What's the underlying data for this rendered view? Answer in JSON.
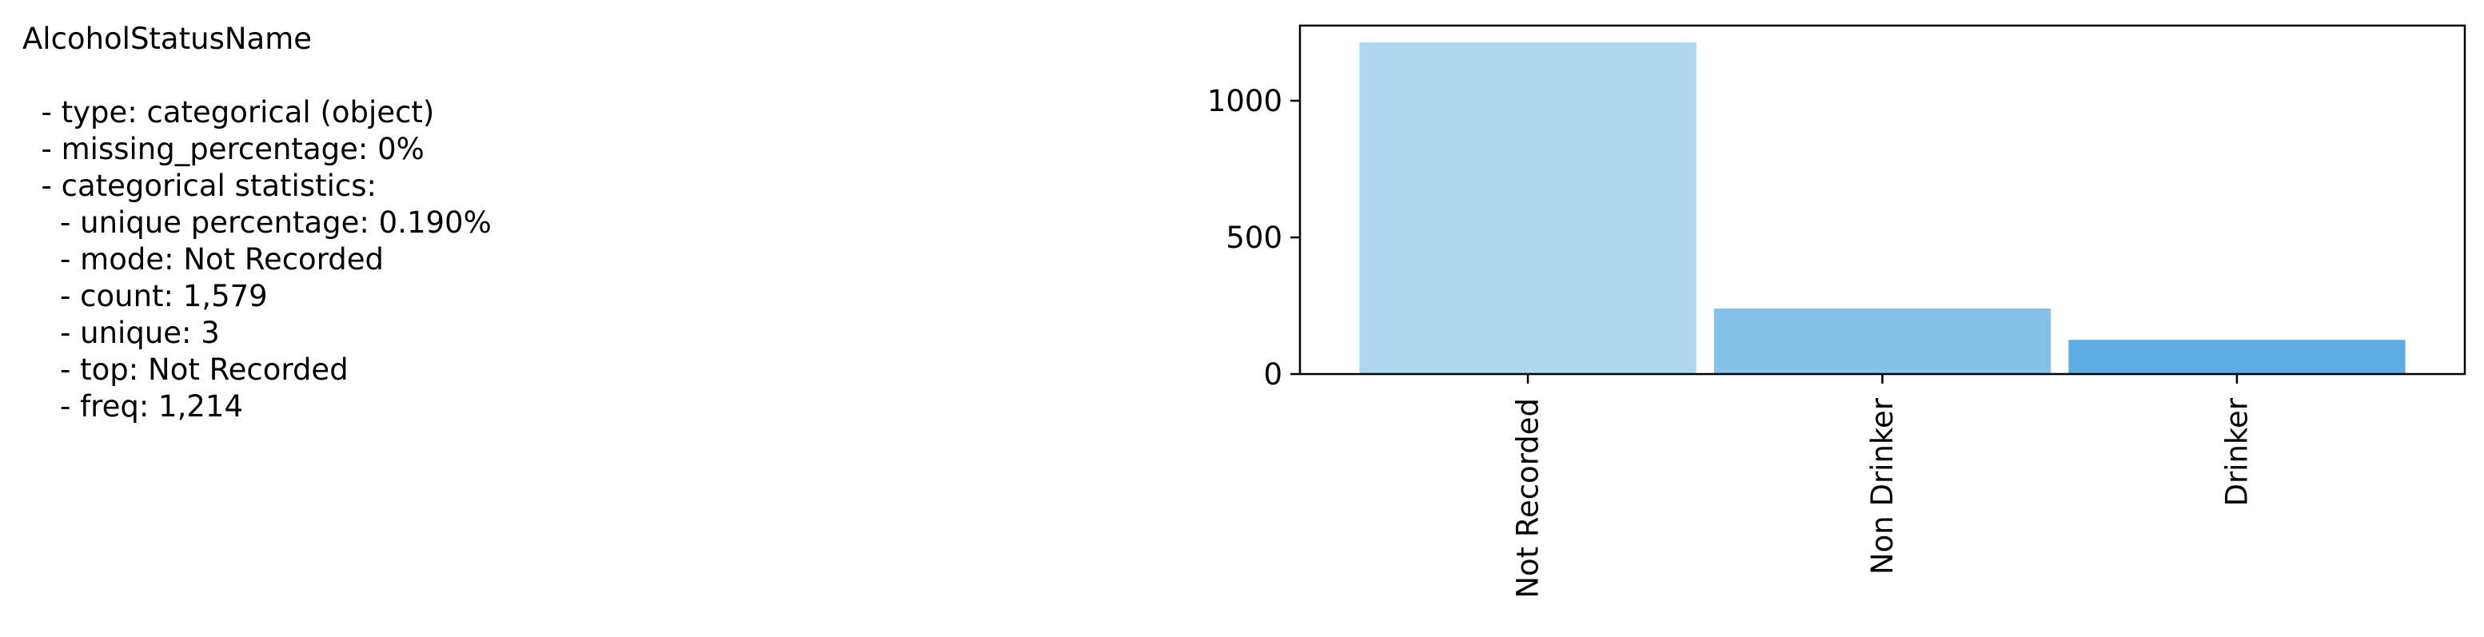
{
  "stats": {
    "column_name": "AlcoholStatusName",
    "lines": [
      "AlcoholStatusName",
      "",
      "  - type: categorical (object)",
      "  - missing_percentage: 0%",
      "  - categorical statistics:",
      "    - unique percentage: 0.190%",
      "    - mode: Not Recorded",
      "    - count: 1,579",
      "    - unique: 3",
      "    - top: Not Recorded",
      "    - freq: 1,214"
    ]
  },
  "chart_data": {
    "type": "bar",
    "categories": [
      "Not Recorded",
      "Non Drinker",
      "Drinker"
    ],
    "values": [
      1214,
      240,
      125
    ],
    "colors": [
      "#aed6f1",
      "#85c1e9",
      "#5dade2"
    ],
    "title": "",
    "xlabel": "",
    "ylabel": "",
    "ylim": [
      0,
      1275
    ],
    "yticks": [
      0,
      500,
      1000
    ],
    "ytick_labels": [
      "0",
      "500",
      "1000"
    ],
    "grid": false,
    "legend": "none"
  }
}
